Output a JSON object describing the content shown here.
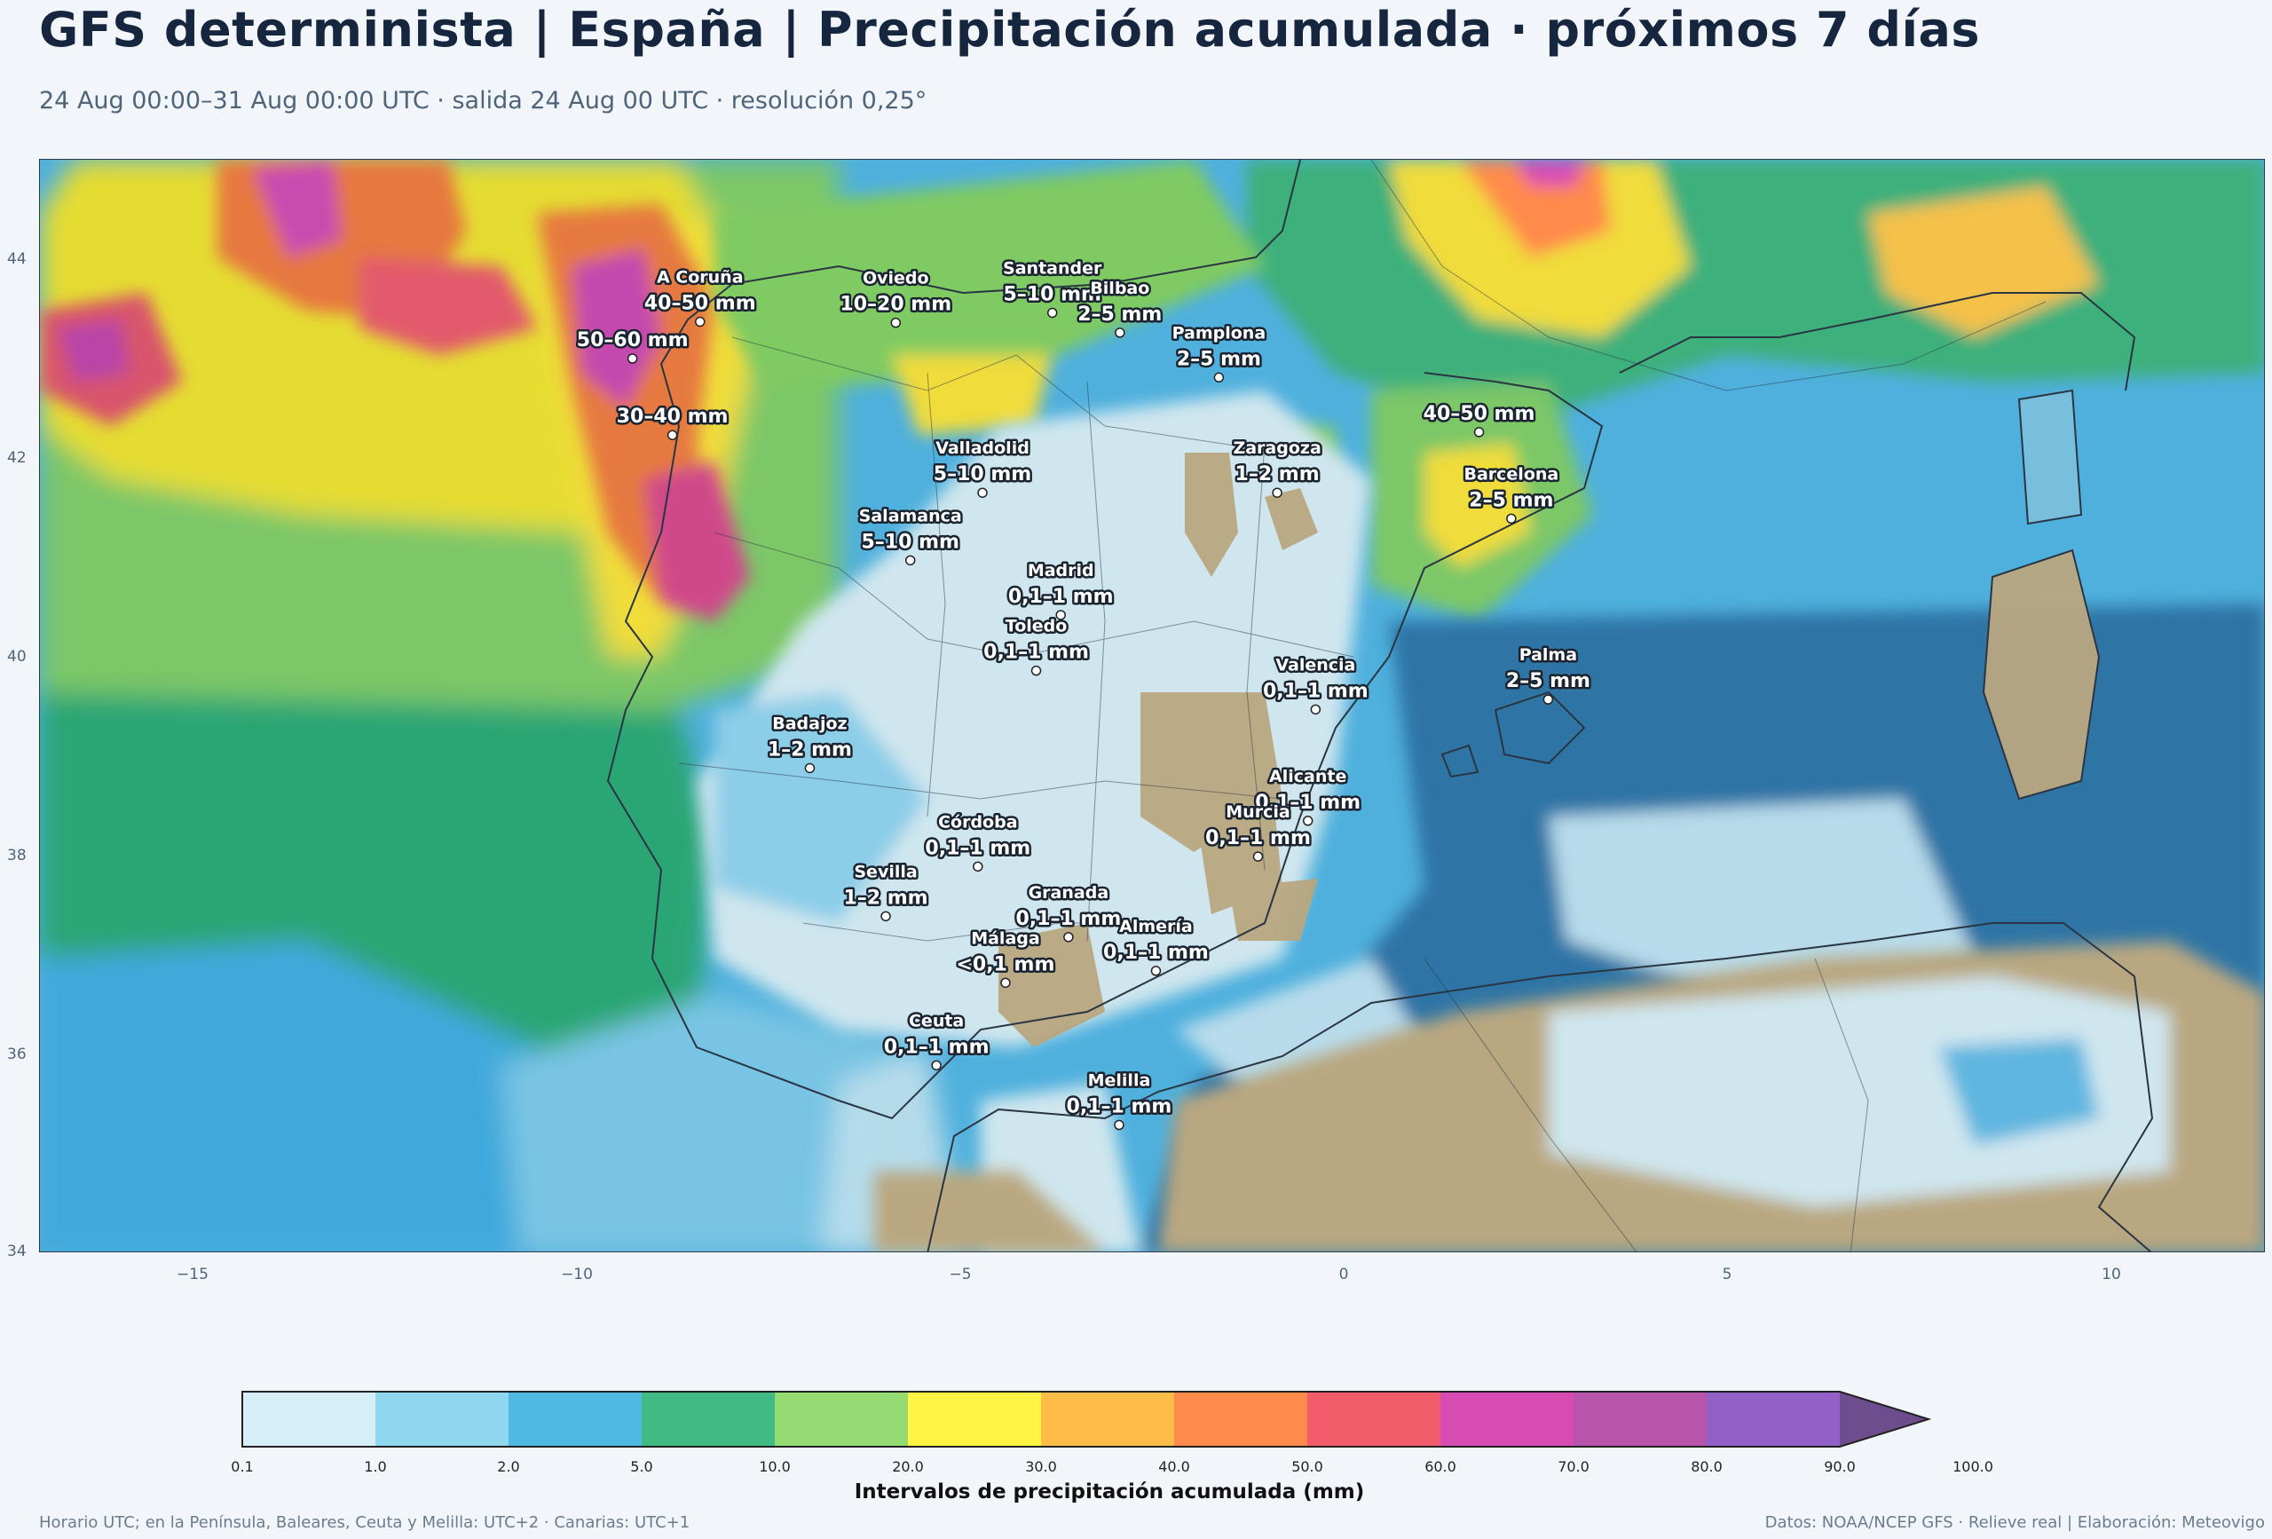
{
  "header": {
    "title": "GFS determinista | España | Precipitación acumulada · próximos 7 días",
    "subtitle": "24 Aug 00:00–31 Aug 00:00 UTC · salida 24 Aug 00 UTC · resolución 0,25°"
  },
  "map": {
    "lon_range": [
      -17,
      12
    ],
    "lat_range": [
      34,
      45
    ],
    "y_ticks": [
      "44",
      "42",
      "40",
      "38",
      "36",
      "34"
    ],
    "x_ticks": [
      "−15",
      "−10",
      "−5",
      "0",
      "5",
      "10"
    ],
    "colors": {
      "sea_dark": "#2e75a6",
      "land_dry": "#b9a780",
      "lightest": "#d4e8ef",
      "border": "#2a3542"
    },
    "cities": [
      {
        "name": "A Coruña",
        "value": "40–50 mm",
        "lon": -8.4,
        "lat": 43.37
      },
      {
        "name": "Oviedo",
        "value": "10–20 mm",
        "lon": -5.85,
        "lat": 43.36
      },
      {
        "name": "Santander",
        "value": "5–10 mm",
        "lon": -3.81,
        "lat": 43.46
      },
      {
        "name": "Bilbao",
        "value": "2–5 mm",
        "lon": -2.93,
        "lat": 43.26
      },
      {
        "name": "Pamplona",
        "value": "2–5 mm",
        "lon": -1.64,
        "lat": 42.81
      },
      {
        "name": "",
        "value": "50–60 mm",
        "lon": -9.28,
        "lat": 43.0
      },
      {
        "name": "",
        "value": "30–40 mm",
        "lon": -8.76,
        "lat": 42.23
      },
      {
        "name": "Valladolid",
        "value": "5–10 mm",
        "lon": -4.72,
        "lat": 41.65
      },
      {
        "name": "",
        "value": "40–50 mm",
        "lon": 1.75,
        "lat": 42.26
      },
      {
        "name": "Zaragoza",
        "value": "1–2 mm",
        "lon": -0.88,
        "lat": 41.65
      },
      {
        "name": "Barcelona",
        "value": "2–5 mm",
        "lon": 2.17,
        "lat": 41.39
      },
      {
        "name": "Salamanca",
        "value": "5–10 mm",
        "lon": -5.66,
        "lat": 40.97
      },
      {
        "name": "Madrid",
        "value": "0,1–1 mm",
        "lon": -3.7,
        "lat": 40.42
      },
      {
        "name": "Valencia",
        "value": "0,1–1 mm",
        "lon": -0.38,
        "lat": 39.47
      },
      {
        "name": "Toledo",
        "value": "0,1–1 mm",
        "lon": -4.02,
        "lat": 39.86
      },
      {
        "name": "Badajoz",
        "value": "1–2 mm",
        "lon": -6.97,
        "lat": 38.88
      },
      {
        "name": "Palma",
        "value": "2–5 mm",
        "lon": 2.65,
        "lat": 39.57
      },
      {
        "name": "Córdoba",
        "value": "0,1–1 mm",
        "lon": -4.78,
        "lat": 37.89
      },
      {
        "name": "Alicante",
        "value": "0,1–1 mm",
        "lon": -0.48,
        "lat": 38.35
      },
      {
        "name": "Murcia",
        "value": "0,1–1 mm",
        "lon": -1.13,
        "lat": 37.99
      },
      {
        "name": "Granada",
        "value": "0,1–1 mm",
        "lon": -3.6,
        "lat": 37.18
      },
      {
        "name": "Sevilla",
        "value": "1–2 mm",
        "lon": -5.98,
        "lat": 37.39
      },
      {
        "name": "Almería",
        "value": "0,1–1 mm",
        "lon": -2.46,
        "lat": 36.84
      },
      {
        "name": "Málaga",
        "value": "<0,1 mm",
        "lon": -4.42,
        "lat": 36.72
      },
      {
        "name": "Ceuta",
        "value": "0,1–1 mm",
        "lon": -5.32,
        "lat": 35.89
      },
      {
        "name": "Melilla",
        "value": "0,1–1 mm",
        "lon": -2.94,
        "lat": 35.29
      }
    ]
  },
  "colorbar": {
    "label": "Intervalos de precipitación acumulada (mm)",
    "ticks": [
      "0.1",
      "1.0",
      "2.0",
      "5.0",
      "10.0",
      "20.0",
      "30.0",
      "40.0",
      "50.0",
      "60.0",
      "70.0",
      "80.0",
      "90.0",
      "100.0"
    ],
    "colors": [
      "#d6eef7",
      "#8fd6ef",
      "#4fb8e3",
      "#40bb83",
      "#94dc72",
      "#fff444",
      "#ffbd47",
      "#ff8a4b",
      "#f25c6a",
      "#d84bb4",
      "#b954ad",
      "#9360c8",
      "#6e4d8f"
    ]
  },
  "footer": {
    "left": "Horario UTC; en la Península, Baleares, Ceuta y Melilla: UTC+2 · Canarias: UTC+1",
    "right": "Datos: NOAA/NCEP GFS · Relieve real | Elaboración: Meteovigo"
  }
}
